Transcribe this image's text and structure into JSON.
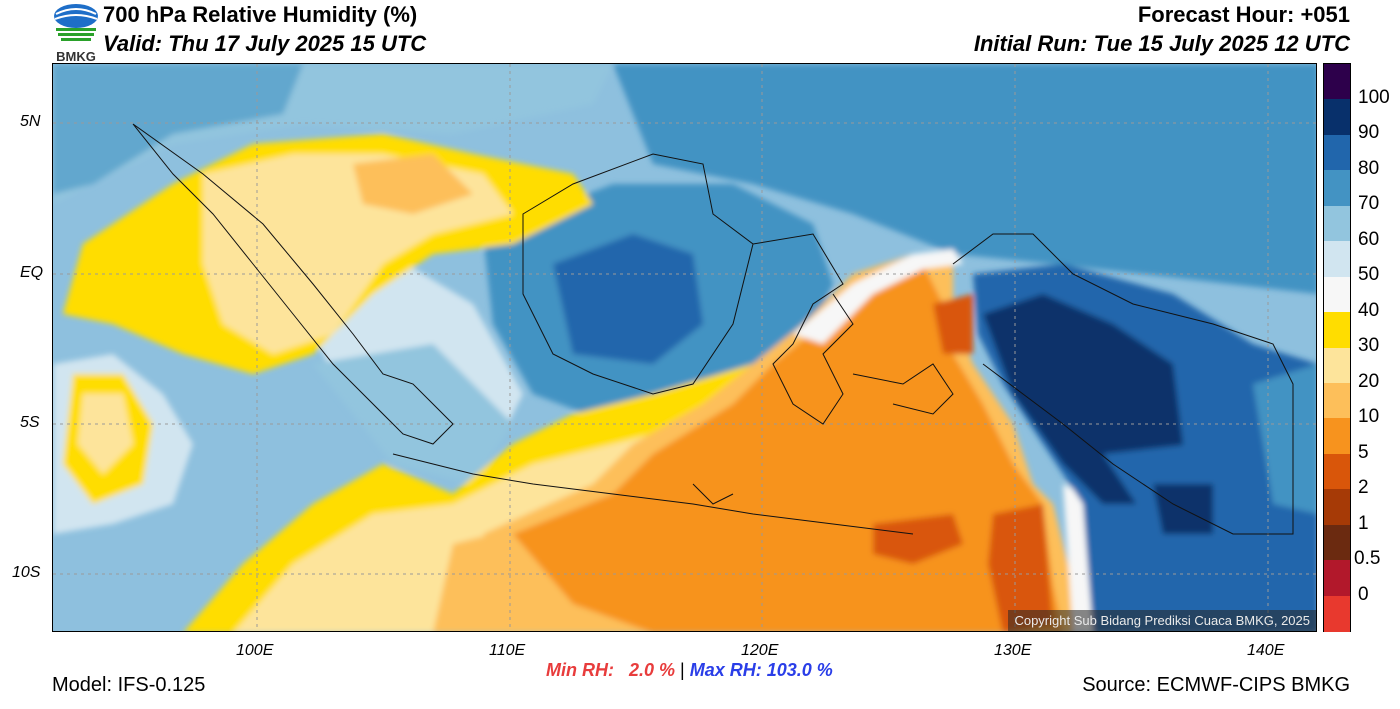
{
  "header": {
    "title": "700 hPa Relative Humidity (%)",
    "valid": "Valid: Thu 17 July 2025 15 UTC",
    "forecast_hour": "Forecast Hour: +051",
    "initial_run": "Initial Run: Tue 15 July 2025 12 UTC",
    "logo_text": "BMKG"
  },
  "map": {
    "lat_labels": [
      "5N",
      "EQ",
      "5S",
      "10S"
    ],
    "lon_labels": [
      "100E",
      "110E",
      "120E",
      "130E",
      "140E"
    ],
    "copyright": "Copyright Sub Bidang Prediksi Cuaca BMKG, 2025"
  },
  "colorbar": {
    "labels": [
      "100",
      "90",
      "80",
      "70",
      "60",
      "50",
      "40",
      "30",
      "20",
      "10",
      "5",
      "2",
      "1",
      "0.5",
      "0"
    ],
    "colors": [
      "#2d004b",
      "#08306b",
      "#2166ac",
      "#4393c3",
      "#92c5de",
      "#d1e5f0",
      "#f7f7f7",
      "#ffdd00",
      "#fde49b",
      "#fdbf5a",
      "#f7931e",
      "#d9560a",
      "#a63a06",
      "#6b2a10",
      "#b2182b",
      "#e8392e"
    ]
  },
  "footer": {
    "model": "Model: IFS-0.125",
    "min_rh": "Min RH:   2.0 %",
    "separator": " | ",
    "max_rh": "Max RH: 103.0 %",
    "source": "Source: ECMWF-CIPS BMKG"
  },
  "colors": {
    "min_rh": "#e83c3c",
    "max_rh": "#2a3ee8"
  }
}
